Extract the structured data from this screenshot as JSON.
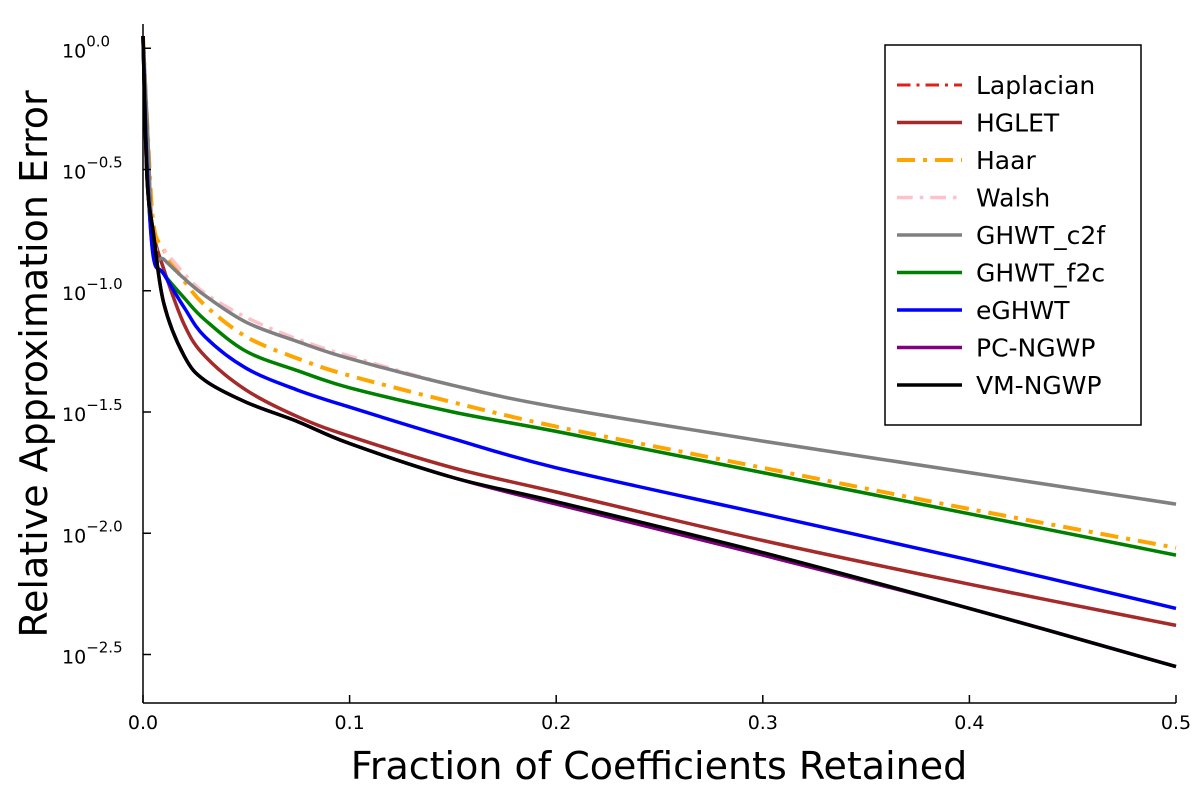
{
  "chart_data": {
    "type": "line",
    "xlabel": "Fraction of Coefficients Retained",
    "ylabel": "Relative Approximation Error",
    "yscale": "log10",
    "xlim": [
      0,
      0.5
    ],
    "ylim_log10": [
      -2.7,
      0.1
    ],
    "grid": false,
    "legend_position": "top-right",
    "xticks": [
      {
        "value": 0,
        "label": "0.0"
      },
      {
        "value": 0.1,
        "label": "0.1"
      },
      {
        "value": 0.2,
        "label": "0.2"
      },
      {
        "value": 0.3,
        "label": "0.3"
      },
      {
        "value": 0.4,
        "label": "0.4"
      },
      {
        "value": 0.5,
        "label": "0.5"
      }
    ],
    "yticks": [
      {
        "value": 0.0,
        "base": "10",
        "exponent": "0.0"
      },
      {
        "value": -0.5,
        "base": "10",
        "exponent": "−0.5"
      },
      {
        "value": -1.0,
        "base": "10",
        "exponent": "−1.0"
      },
      {
        "value": -1.5,
        "base": "10",
        "exponent": "−1.5"
      },
      {
        "value": -2.0,
        "base": "10",
        "exponent": "−2.0"
      },
      {
        "value": -2.5,
        "base": "10",
        "exponent": "−2.5"
      }
    ],
    "x": [
      0,
      0.002,
      0.005,
      0.01,
      0.02,
      0.03,
      0.05,
      0.075,
      0.1,
      0.15,
      0.2,
      0.3,
      0.4,
      0.5
    ],
    "series": [
      {
        "name": "Laplacian",
        "color": "#e0201b",
        "dash": "dashdot",
        "width": 3,
        "values": [
          0.05,
          -0.54,
          -0.76,
          -0.91,
          -1.14,
          -1.27,
          -1.41,
          -1.52,
          -1.6,
          -1.73,
          -1.83,
          -2.03,
          -2.21,
          -2.38
        ]
      },
      {
        "name": "HGLET",
        "color": "#a52a2a",
        "dash": "solid",
        "width": 3.5,
        "values": [
          0.05,
          -0.54,
          -0.76,
          -0.91,
          -1.14,
          -1.27,
          -1.41,
          -1.52,
          -1.6,
          -1.73,
          -1.83,
          -2.03,
          -2.21,
          -2.38
        ]
      },
      {
        "name": "Haar",
        "color": "#ffa500",
        "dash": "dashdot",
        "width": 4,
        "values": [
          0.05,
          -0.3,
          -0.72,
          -0.83,
          -0.96,
          -1.06,
          -1.19,
          -1.28,
          -1.35,
          -1.46,
          -1.56,
          -1.73,
          -1.9,
          -2.06
        ]
      },
      {
        "name": "Walsh",
        "color": "#ffc0cb",
        "dash": "dashdot",
        "width": 3.5,
        "values": [
          0.05,
          -0.3,
          -0.78,
          -0.83,
          -0.93,
          -1.01,
          -1.11,
          -1.2,
          -1.27,
          -1.39,
          -1.48,
          -1.62,
          -1.75,
          -1.88
        ]
      },
      {
        "name": "GHWT_c2f",
        "color": "#808080",
        "dash": "solid",
        "width": 3.5,
        "values": [
          0.05,
          -0.3,
          -0.83,
          -0.87,
          -0.95,
          -1.02,
          -1.13,
          -1.21,
          -1.28,
          -1.39,
          -1.48,
          -1.62,
          -1.75,
          -1.88
        ]
      },
      {
        "name": "GHWT_f2c",
        "color": "#008000",
        "dash": "solid",
        "width": 3.5,
        "values": [
          0.05,
          -0.5,
          -0.85,
          -0.93,
          -1.03,
          -1.12,
          -1.25,
          -1.33,
          -1.4,
          -1.5,
          -1.58,
          -1.75,
          -1.92,
          -2.09
        ]
      },
      {
        "name": "eGHWT",
        "color": "#0000ff",
        "dash": "solid",
        "width": 3.5,
        "values": [
          0.05,
          -0.5,
          -0.86,
          -0.93,
          -1.07,
          -1.19,
          -1.32,
          -1.41,
          -1.48,
          -1.61,
          -1.73,
          -1.92,
          -2.11,
          -2.31
        ]
      },
      {
        "name": "PC-NGWP",
        "color": "#800080",
        "dash": "solid",
        "width": 3.5,
        "values": [
          0.05,
          -0.54,
          -0.76,
          -1.05,
          -1.27,
          -1.37,
          -1.46,
          -1.54,
          -1.63,
          -1.77,
          -1.88,
          -2.09,
          -2.31,
          -2.55
        ]
      },
      {
        "name": "VM-NGWP",
        "color": "#000000",
        "dash": "solid",
        "width": 3.5,
        "values": [
          0.05,
          -0.54,
          -0.76,
          -1.05,
          -1.27,
          -1.37,
          -1.46,
          -1.54,
          -1.63,
          -1.77,
          -1.87,
          -2.08,
          -2.31,
          -2.55
        ]
      }
    ]
  }
}
